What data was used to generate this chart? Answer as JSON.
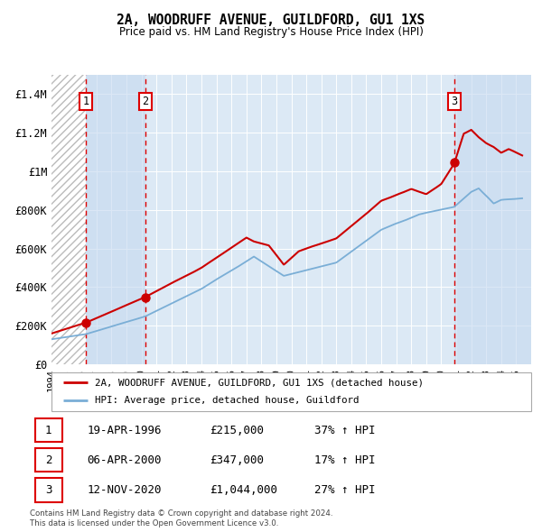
{
  "title": "2A, WOODRUFF AVENUE, GUILDFORD, GU1 1XS",
  "subtitle": "Price paid vs. HM Land Registry's House Price Index (HPI)",
  "ylim": [
    0,
    1500000
  ],
  "yticks": [
    0,
    200000,
    400000,
    600000,
    800000,
    1000000,
    1200000,
    1400000
  ],
  "ytick_labels": [
    "£0",
    "£200K",
    "£400K",
    "£600K",
    "£800K",
    "£1M",
    "£1.2M",
    "£1.4M"
  ],
  "sale_info": [
    [
      "1",
      "19-APR-1996",
      "£215,000",
      "37% ↑ HPI"
    ],
    [
      "2",
      "06-APR-2000",
      "£347,000",
      "17% ↑ HPI"
    ],
    [
      "3",
      "12-NOV-2020",
      "£1,044,000",
      "27% ↑ HPI"
    ]
  ],
  "legend_line1": "2A, WOODRUFF AVENUE, GUILDFORD, GU1 1XS (detached house)",
  "legend_line2": "HPI: Average price, detached house, Guildford",
  "line_color_red": "#cc0000",
  "line_color_blue": "#7aaed6",
  "footer": "Contains HM Land Registry data © Crown copyright and database right 2024.\nThis data is licensed under the Open Government Licence v3.0.",
  "xstart_year": 1994,
  "xend_year": 2026,
  "sale_times": [
    1996.3,
    2000.27,
    2020.87
  ],
  "sale_prices": [
    215000,
    347000,
    1044000
  ]
}
